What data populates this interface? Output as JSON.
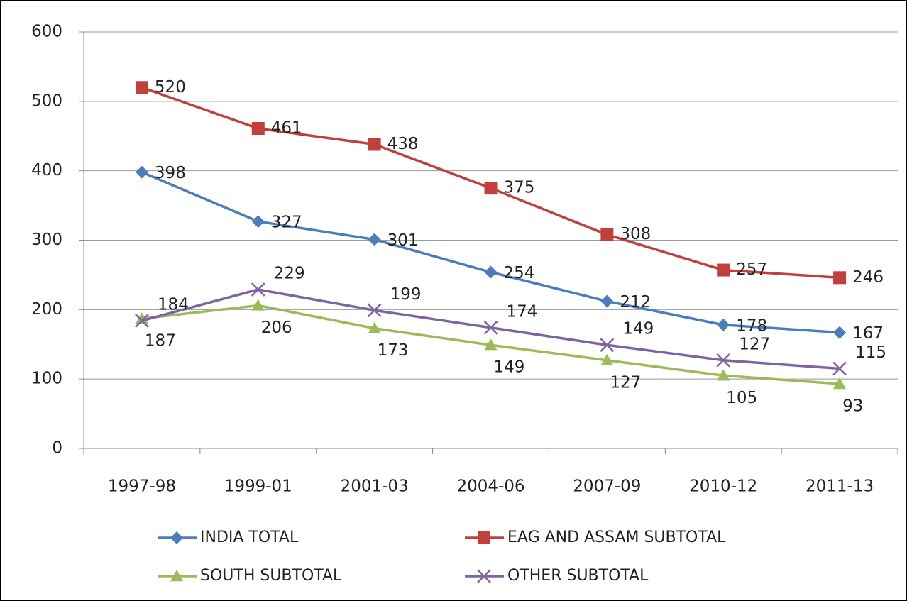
{
  "chart_data": {
    "type": "line",
    "categories": [
      "1997-98",
      "1999-01",
      "2001-03",
      "2004-06",
      "2007-09",
      "2010-12",
      "2011-13"
    ],
    "series": [
      {
        "name": "INDIA TOTAL",
        "color": "#4a7ebb",
        "marker": "diamond",
        "values": [
          398,
          327,
          301,
          254,
          212,
          178,
          167
        ]
      },
      {
        "name": "EAG AND ASSAM SUBTOTAL",
        "color": "#c0403d",
        "marker": "square",
        "values": [
          520,
          461,
          438,
          375,
          308,
          257,
          246
        ]
      },
      {
        "name": "SOUTH SUBTOTAL",
        "color": "#9bbb59",
        "marker": "triangle",
        "values": [
          187,
          206,
          173,
          149,
          127,
          105,
          93
        ]
      },
      {
        "name": "OTHER SUBTOTAL",
        "color": "#8064a2",
        "marker": "x",
        "values": [
          184,
          229,
          199,
          174,
          149,
          127,
          115
        ]
      }
    ],
    "ylim": [
      0,
      600
    ],
    "yticks": [
      0,
      100,
      200,
      300,
      400,
      500,
      600
    ],
    "grid": true,
    "legend": "bottom"
  }
}
